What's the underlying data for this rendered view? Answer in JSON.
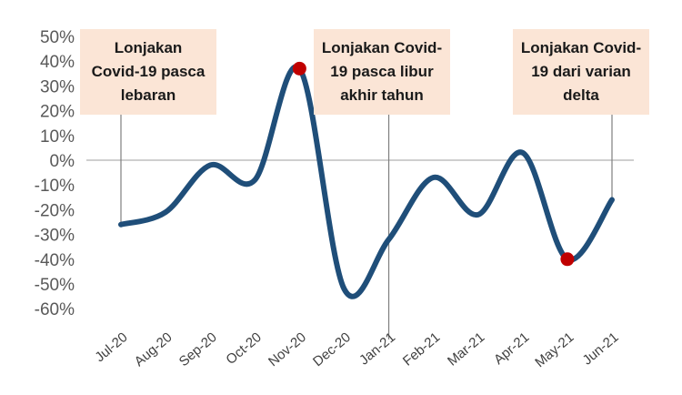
{
  "chart_data": {
    "type": "line",
    "categories": [
      "Jul-20",
      "Aug-20",
      "Sep-20",
      "Oct-20",
      "Nov-20",
      "Dec-20",
      "Jan-21",
      "Feb-21",
      "Mar-21",
      "Apr-21",
      "May-21",
      "Jun-21"
    ],
    "series": [
      {
        "values": [
          -26,
          -21,
          -2,
          -8,
          37,
          -52,
          -32,
          -7,
          -22,
          3,
          -40,
          -16
        ]
      }
    ],
    "ylim": [
      -60,
      50
    ],
    "yticks": [
      "50%",
      "40%",
      "30%",
      "20%",
      "10%",
      "0%",
      "-10%",
      "-20%",
      "-30%",
      "-40%",
      "-50%",
      "-60%"
    ],
    "highlighted_points": [
      "Nov-20",
      "May-21"
    ],
    "annotations": [
      {
        "lines": [
          "Lonjakan",
          "Covid-19 pasca",
          "lebaran"
        ],
        "category": "Jul-20"
      },
      {
        "lines": [
          "Lonjakan Covid-",
          "19 pasca libur",
          "akhir tahun"
        ],
        "category": "Jan-21"
      },
      {
        "lines": [
          "Lonjakan Covid-",
          "19 dari varian",
          "delta"
        ],
        "category": "Jun-21"
      }
    ],
    "grid": false,
    "colors": {
      "line": "#1f4e79",
      "marker": "#c00000",
      "annotation_bg": "#fbe5d6",
      "zero_line": "#bfbfbf"
    }
  }
}
